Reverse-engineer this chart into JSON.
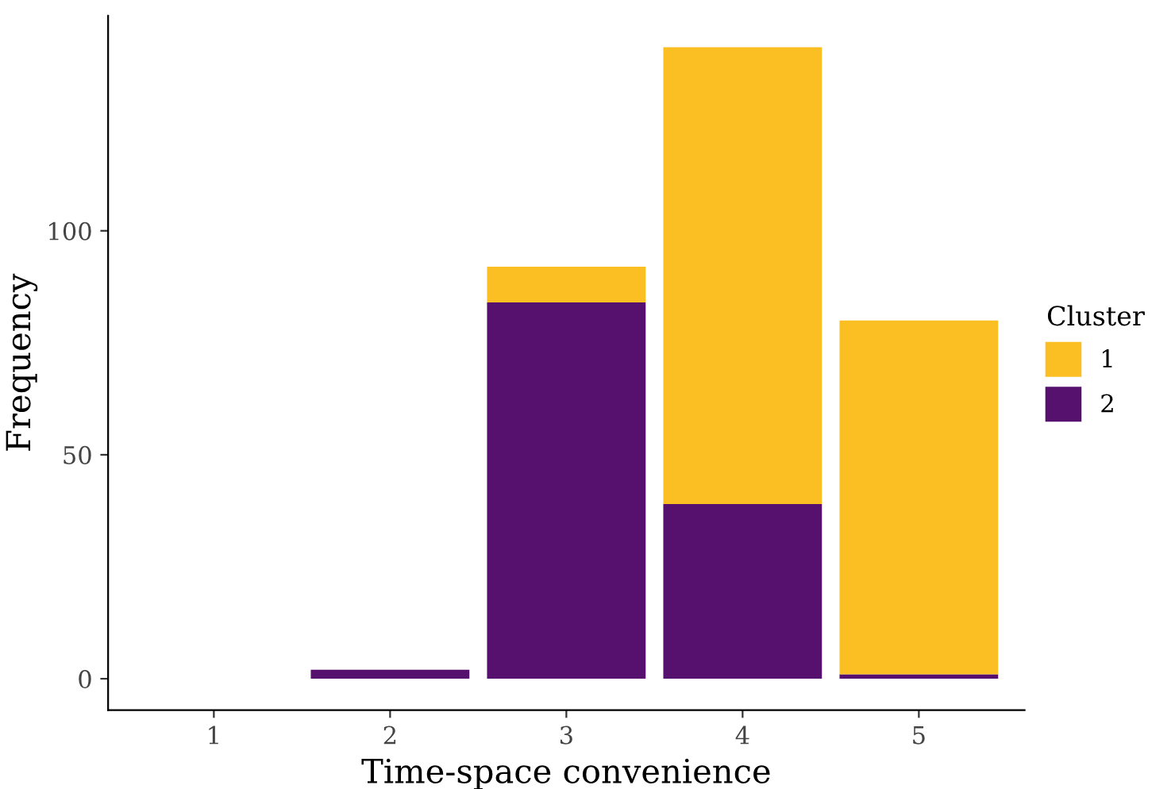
{
  "chart_data": {
    "type": "bar",
    "stacked": true,
    "xlabel": "Time-space convenience",
    "ylabel": "Frequency",
    "legend_title": "Cluster",
    "legend": "right",
    "categories": [
      "1",
      "2",
      "3",
      "4",
      "5"
    ],
    "series": [
      {
        "name": "2",
        "color": "#56106e",
        "values": [
          0,
          2,
          84,
          39,
          1
        ]
      },
      {
        "name": "1",
        "color": "#fbbe23",
        "values": [
          0,
          0,
          8,
          102,
          79
        ]
      }
    ],
    "ylim": [
      -7,
      148
    ],
    "yticks": [
      0,
      50,
      100
    ],
    "grid": false
  }
}
